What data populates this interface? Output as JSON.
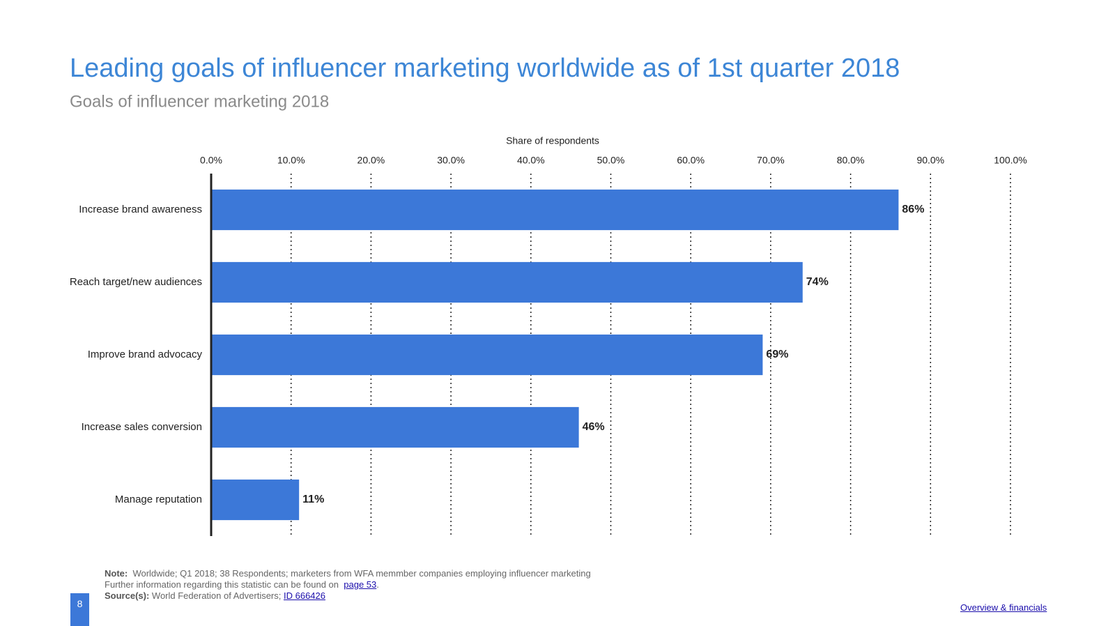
{
  "chart_data": {
    "type": "bar",
    "orientation": "horizontal",
    "title": "Leading goals of influencer marketing worldwide as of 1st quarter 2018",
    "subtitle": "Goals of influencer marketing 2018",
    "x_label": "Share of respondents",
    "categories": [
      "Increase brand awareness",
      "Reach target/new audiences",
      "Improve brand advocacy",
      "Increase sales conversion",
      "Manage reputation"
    ],
    "values": [
      86,
      74,
      69,
      46,
      11
    ],
    "value_labels": [
      "86%",
      "74%",
      "69%",
      "46%",
      "11%"
    ],
    "color": "#3c78d8",
    "xlim": [
      0,
      100
    ],
    "xticks": [
      {
        "value": 0,
        "label": "0.0%"
      },
      {
        "value": 10,
        "label": "10.0%"
      },
      {
        "value": 20,
        "label": "20.0%"
      },
      {
        "value": 30,
        "label": "30.0%"
      },
      {
        "value": 40,
        "label": "40.0%"
      },
      {
        "value": 50,
        "label": "50.0%"
      },
      {
        "value": 60,
        "label": "60.0%"
      },
      {
        "value": 70,
        "label": "70.0%"
      },
      {
        "value": 80,
        "label": "80.0%"
      },
      {
        "value": 90,
        "label": "90.0%"
      },
      {
        "value": 100,
        "label": "100.0%"
      }
    ],
    "grid": true
  },
  "footer": {
    "note_label": "Note:",
    "note_text": "Worldwide; Q1 2018; 38 Respondents; marketers from WFA memmber companies employing influencer marketing",
    "info_text": "Further information regarding this statistic can be found on",
    "info_link": "page 53",
    "info_end": ".",
    "source_label": "Source(s):",
    "source_text": "World Federation of Advertisers;",
    "source_link": "ID 666426",
    "page_number": "8",
    "overview_link": "Overview & financials"
  }
}
